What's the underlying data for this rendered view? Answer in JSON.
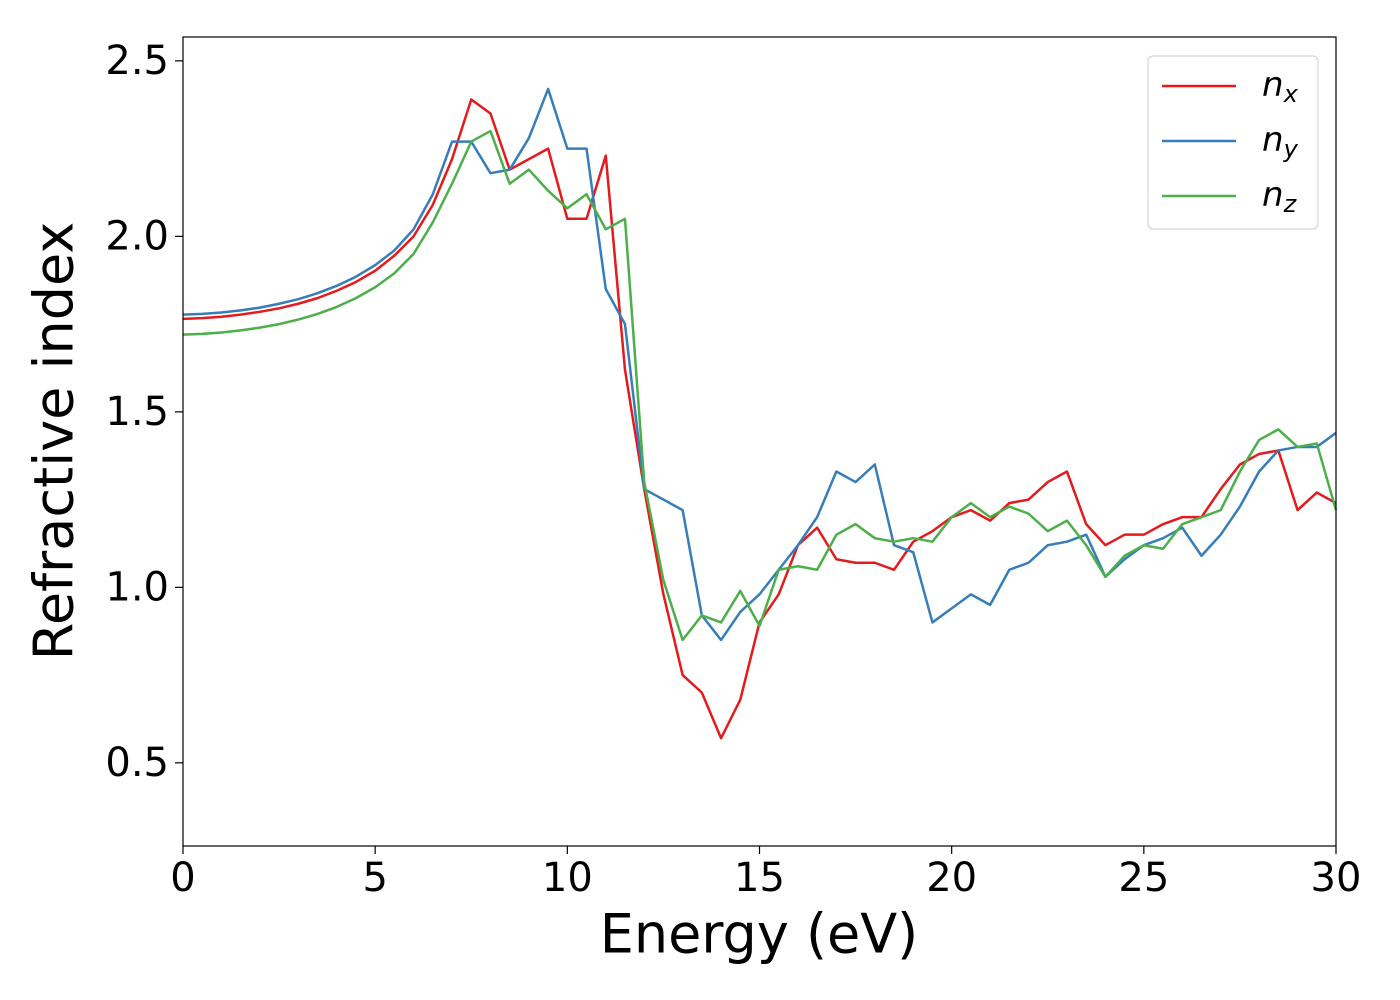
{
  "chart_data": {
    "type": "line",
    "xlabel": "Energy (eV)",
    "ylabel": "Refractive index",
    "x": [
      0,
      0.5,
      1,
      1.5,
      2,
      2.5,
      3,
      3.5,
      4,
      4.5,
      5,
      5.5,
      6,
      6.5,
      7,
      7.5,
      8,
      8.5,
      9,
      9.5,
      10,
      10.5,
      11,
      11.5,
      12,
      12.5,
      13,
      13.5,
      14,
      14.5,
      15,
      15.5,
      16,
      16.5,
      17,
      17.5,
      18,
      18.5,
      19,
      19.5,
      20,
      20.5,
      21,
      21.5,
      22,
      22.5,
      23,
      23.5,
      24,
      24.5,
      25,
      25.5,
      26,
      26.5,
      27,
      27.5,
      28,
      28.5,
      29,
      29.5,
      30
    ],
    "series": [
      {
        "name": "nx",
        "color": "#e41a1c",
        "values": [
          1.765,
          1.767,
          1.771,
          1.777,
          1.785,
          1.795,
          1.808,
          1.824,
          1.845,
          1.87,
          1.902,
          1.945,
          2.0,
          2.09,
          2.22,
          2.39,
          2.35,
          2.19,
          2.22,
          2.25,
          2.05,
          2.05,
          2.23,
          1.62,
          1.28,
          0.98,
          0.75,
          0.7,
          0.57,
          0.68,
          0.9,
          0.98,
          1.12,
          1.17,
          1.08,
          1.07,
          1.07,
          1.05,
          1.13,
          1.16,
          1.2,
          1.22,
          1.19,
          1.24,
          1.25,
          1.3,
          1.33,
          1.18,
          1.12,
          1.15,
          1.15,
          1.18,
          1.2,
          1.2,
          1.28,
          1.35,
          1.38,
          1.39,
          1.22,
          1.27,
          1.24
        ]
      },
      {
        "name": "ny",
        "color": "#377eb8",
        "values": [
          1.777,
          1.779,
          1.783,
          1.789,
          1.797,
          1.808,
          1.821,
          1.838,
          1.859,
          1.885,
          1.918,
          1.96,
          2.02,
          2.12,
          2.27,
          2.27,
          2.18,
          2.19,
          2.28,
          2.42,
          2.25,
          2.25,
          1.85,
          1.75,
          1.28,
          1.25,
          1.22,
          0.92,
          0.85,
          0.93,
          0.98,
          1.05,
          1.12,
          1.2,
          1.33,
          1.3,
          1.35,
          1.12,
          1.1,
          0.9,
          0.94,
          0.98,
          0.95,
          1.05,
          1.07,
          1.12,
          1.13,
          1.15,
          1.03,
          1.08,
          1.12,
          1.14,
          1.17,
          1.09,
          1.15,
          1.23,
          1.33,
          1.39,
          1.4,
          1.4,
          1.44
        ]
      },
      {
        "name": "nz",
        "color": "#4daf4a",
        "values": [
          1.72,
          1.722,
          1.726,
          1.732,
          1.74,
          1.75,
          1.763,
          1.779,
          1.799,
          1.824,
          1.855,
          1.895,
          1.95,
          2.04,
          2.15,
          2.27,
          2.3,
          2.15,
          2.19,
          2.13,
          2.08,
          2.12,
          2.02,
          2.05,
          1.3,
          1.02,
          0.85,
          0.92,
          0.9,
          0.99,
          0.89,
          1.05,
          1.06,
          1.05,
          1.15,
          1.18,
          1.14,
          1.13,
          1.14,
          1.13,
          1.2,
          1.24,
          1.2,
          1.23,
          1.21,
          1.16,
          1.19,
          1.12,
          1.03,
          1.09,
          1.12,
          1.11,
          1.18,
          1.2,
          1.22,
          1.33,
          1.42,
          1.45,
          1.4,
          1.41,
          1.22
        ]
      }
    ],
    "xlim": [
      0,
      30
    ],
    "ylim": [
      0.263,
      2.568
    ],
    "xticks": [
      0,
      5,
      10,
      15,
      20,
      25,
      30
    ],
    "yticks": [
      0.5,
      {
        "value": 1,
        "label": "1.0"
      },
      1.5,
      {
        "value": 2,
        "label": "2.0"
      },
      2.5
    ],
    "legend": "upper right"
  }
}
